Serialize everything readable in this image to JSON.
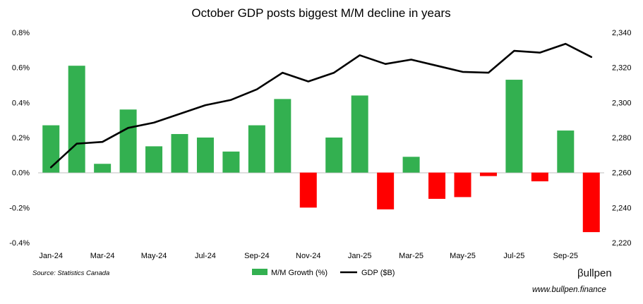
{
  "chart_data": {
    "type": "bar+line",
    "title": "October GDP posts biggest M/M decline in years",
    "categories": [
      "Jan-24",
      "Feb-24",
      "Mar-24",
      "Apr-24",
      "May-24",
      "Jun-24",
      "Jul-24",
      "Aug-24",
      "Sep-24",
      "Oct-24",
      "Nov-24",
      "Dec-24",
      "Jan-25",
      "Feb-25",
      "Mar-25",
      "Apr-25",
      "May-25",
      "Jun-25",
      "Jul-25",
      "Aug-25",
      "Sep-25",
      "Oct-25"
    ],
    "x_tick_labels": [
      "Jan-24",
      "Mar-24",
      "May-24",
      "Jul-24",
      "Sep-24",
      "Nov-24",
      "Jan-25",
      "Mar-25",
      "May-25",
      "Jul-25",
      "Sep-25"
    ],
    "series": [
      {
        "name": "M/M Growth (%)",
        "axis": "left",
        "kind": "bar",
        "values": [
          0.27,
          0.61,
          0.05,
          0.36,
          0.15,
          0.22,
          0.2,
          0.12,
          0.27,
          0.42,
          -0.2,
          0.2,
          0.44,
          -0.21,
          0.09,
          -0.15,
          -0.14,
          -0.02,
          0.53,
          -0.05,
          0.24,
          -0.34
        ]
      },
      {
        "name": "GDP ($B)",
        "axis": "right",
        "kind": "line",
        "values": [
          2263,
          2276.5,
          2277.5,
          2285.5,
          2288.5,
          2293.5,
          2298.5,
          2301.5,
          2307.5,
          2317,
          2312,
          2317,
          2327,
          2322,
          2324.5,
          2321,
          2317.5,
          2317,
          2329.5,
          2328.5,
          2333.5,
          2326
        ]
      }
    ],
    "left_axis": {
      "min": -0.4,
      "max": 0.8,
      "step": 0.2,
      "ticks": [
        "-0.4%",
        "-0.2%",
        "0.0%",
        "0.2%",
        "0.4%",
        "0.6%",
        "0.8%"
      ]
    },
    "right_axis": {
      "min": 2220,
      "max": 2340,
      "step": 20,
      "ticks": [
        "2,220",
        "2,240",
        "2,260",
        "2,280",
        "2,300",
        "2,320",
        "2,340"
      ]
    },
    "colors": {
      "positive": "#33b050",
      "negative": "#ff0000",
      "line": "#000000"
    },
    "legend": {
      "position": "bottom",
      "bar_label": "M/M Growth (%)",
      "line_label": "GDP ($B)"
    },
    "source": "Source: Statistics Canada",
    "brand": "βullpen",
    "website": "www.bullpen.finance"
  }
}
